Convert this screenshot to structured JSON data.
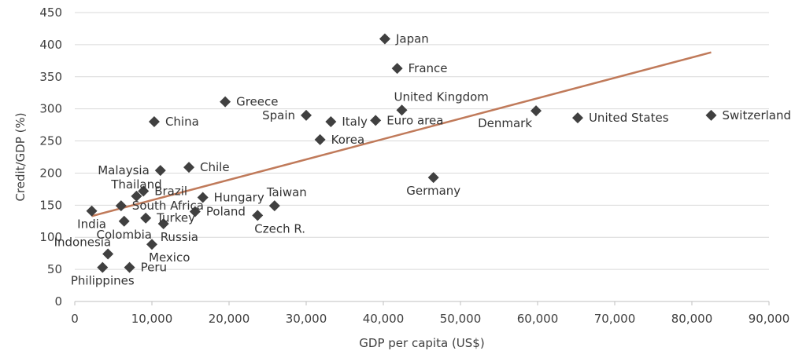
{
  "chart_data": {
    "type": "scatter",
    "title": "",
    "xlabel": "GDP per capita (US$)",
    "ylabel": "Credit/GDP (%)",
    "xlim": [
      0,
      90000
    ],
    "ylim": [
      0,
      450
    ],
    "x_ticks": [
      0,
      10000,
      20000,
      30000,
      40000,
      50000,
      60000,
      70000,
      80000,
      90000
    ],
    "x_tick_labels": [
      "0",
      "10,000",
      "20,000",
      "30,000",
      "40,000",
      "50,000",
      "60,000",
      "70,000",
      "80,000",
      "90,000"
    ],
    "y_ticks": [
      0,
      50,
      100,
      150,
      200,
      250,
      300,
      350,
      400,
      450
    ],
    "y_tick_labels": [
      "0",
      "50",
      "100",
      "150",
      "200",
      "250",
      "300",
      "350",
      "400",
      "450"
    ],
    "grid": "horizontal",
    "marker": "diamond",
    "colors": {
      "points": "#404040",
      "trendline": "#C07A5A",
      "grid": "#d9d9d9",
      "text": "#404040"
    },
    "points": [
      {
        "name": "Japan",
        "x": 40200,
        "y": 409,
        "label_pos": "right"
      },
      {
        "name": "France",
        "x": 41800,
        "y": 363,
        "label_pos": "right"
      },
      {
        "name": "Greece",
        "x": 19500,
        "y": 311,
        "label_pos": "right"
      },
      {
        "name": "United Kingdom",
        "x": 42400,
        "y": 298,
        "label_pos": "above-right"
      },
      {
        "name": "Denmark",
        "x": 59800,
        "y": 297,
        "label_pos": "below-left"
      },
      {
        "name": "United States",
        "x": 65200,
        "y": 286,
        "label_pos": "right"
      },
      {
        "name": "Switzerland",
        "x": 82500,
        "y": 290,
        "label_pos": "right"
      },
      {
        "name": "Spain",
        "x": 30000,
        "y": 290,
        "label_pos": "left"
      },
      {
        "name": "Italy",
        "x": 33200,
        "y": 280,
        "label_pos": "right"
      },
      {
        "name": "Euro area",
        "x": 39000,
        "y": 282,
        "label_pos": "right"
      },
      {
        "name": "China",
        "x": 10300,
        "y": 280,
        "label_pos": "right"
      },
      {
        "name": "Korea",
        "x": 31800,
        "y": 252,
        "label_pos": "right"
      },
      {
        "name": "Chile",
        "x": 14800,
        "y": 209,
        "label_pos": "right"
      },
      {
        "name": "Malaysia",
        "x": 11100,
        "y": 204,
        "label_pos": "left"
      },
      {
        "name": "Germany",
        "x": 46500,
        "y": 193,
        "label_pos": "below"
      },
      {
        "name": "Thailand",
        "x": 8000,
        "y": 164,
        "label_pos": "above"
      },
      {
        "name": "Brazil",
        "x": 8900,
        "y": 172,
        "label_pos": "right"
      },
      {
        "name": "Hungary",
        "x": 16600,
        "y": 162,
        "label_pos": "right"
      },
      {
        "name": "Taiwan",
        "x": 25900,
        "y": 149,
        "label_pos": "above-right"
      },
      {
        "name": "South Africa",
        "x": 6000,
        "y": 149,
        "label_pos": "right"
      },
      {
        "name": "Poland",
        "x": 15600,
        "y": 140,
        "label_pos": "right"
      },
      {
        "name": "India",
        "x": 2200,
        "y": 141,
        "label_pos": "below"
      },
      {
        "name": "Czech R.",
        "x": 23700,
        "y": 134,
        "label_pos": "below-right"
      },
      {
        "name": "Turkey",
        "x": 9200,
        "y": 130,
        "label_pos": "right"
      },
      {
        "name": "Colombia",
        "x": 6400,
        "y": 125,
        "label_pos": "below"
      },
      {
        "name": "Russia",
        "x": 11500,
        "y": 121,
        "label_pos": "below-right"
      },
      {
        "name": "Mexico",
        "x": 10000,
        "y": 89,
        "label_pos": "below-right"
      },
      {
        "name": "Indonesia",
        "x": 4300,
        "y": 74,
        "label_pos": "above-left"
      },
      {
        "name": "Peru",
        "x": 7100,
        "y": 53,
        "label_pos": "right"
      },
      {
        "name": "Philippines",
        "x": 3600,
        "y": 53,
        "label_pos": "below"
      }
    ],
    "trendline": {
      "type": "linear",
      "x": [
        2200,
        82500
      ],
      "y": [
        133,
        388
      ]
    }
  }
}
